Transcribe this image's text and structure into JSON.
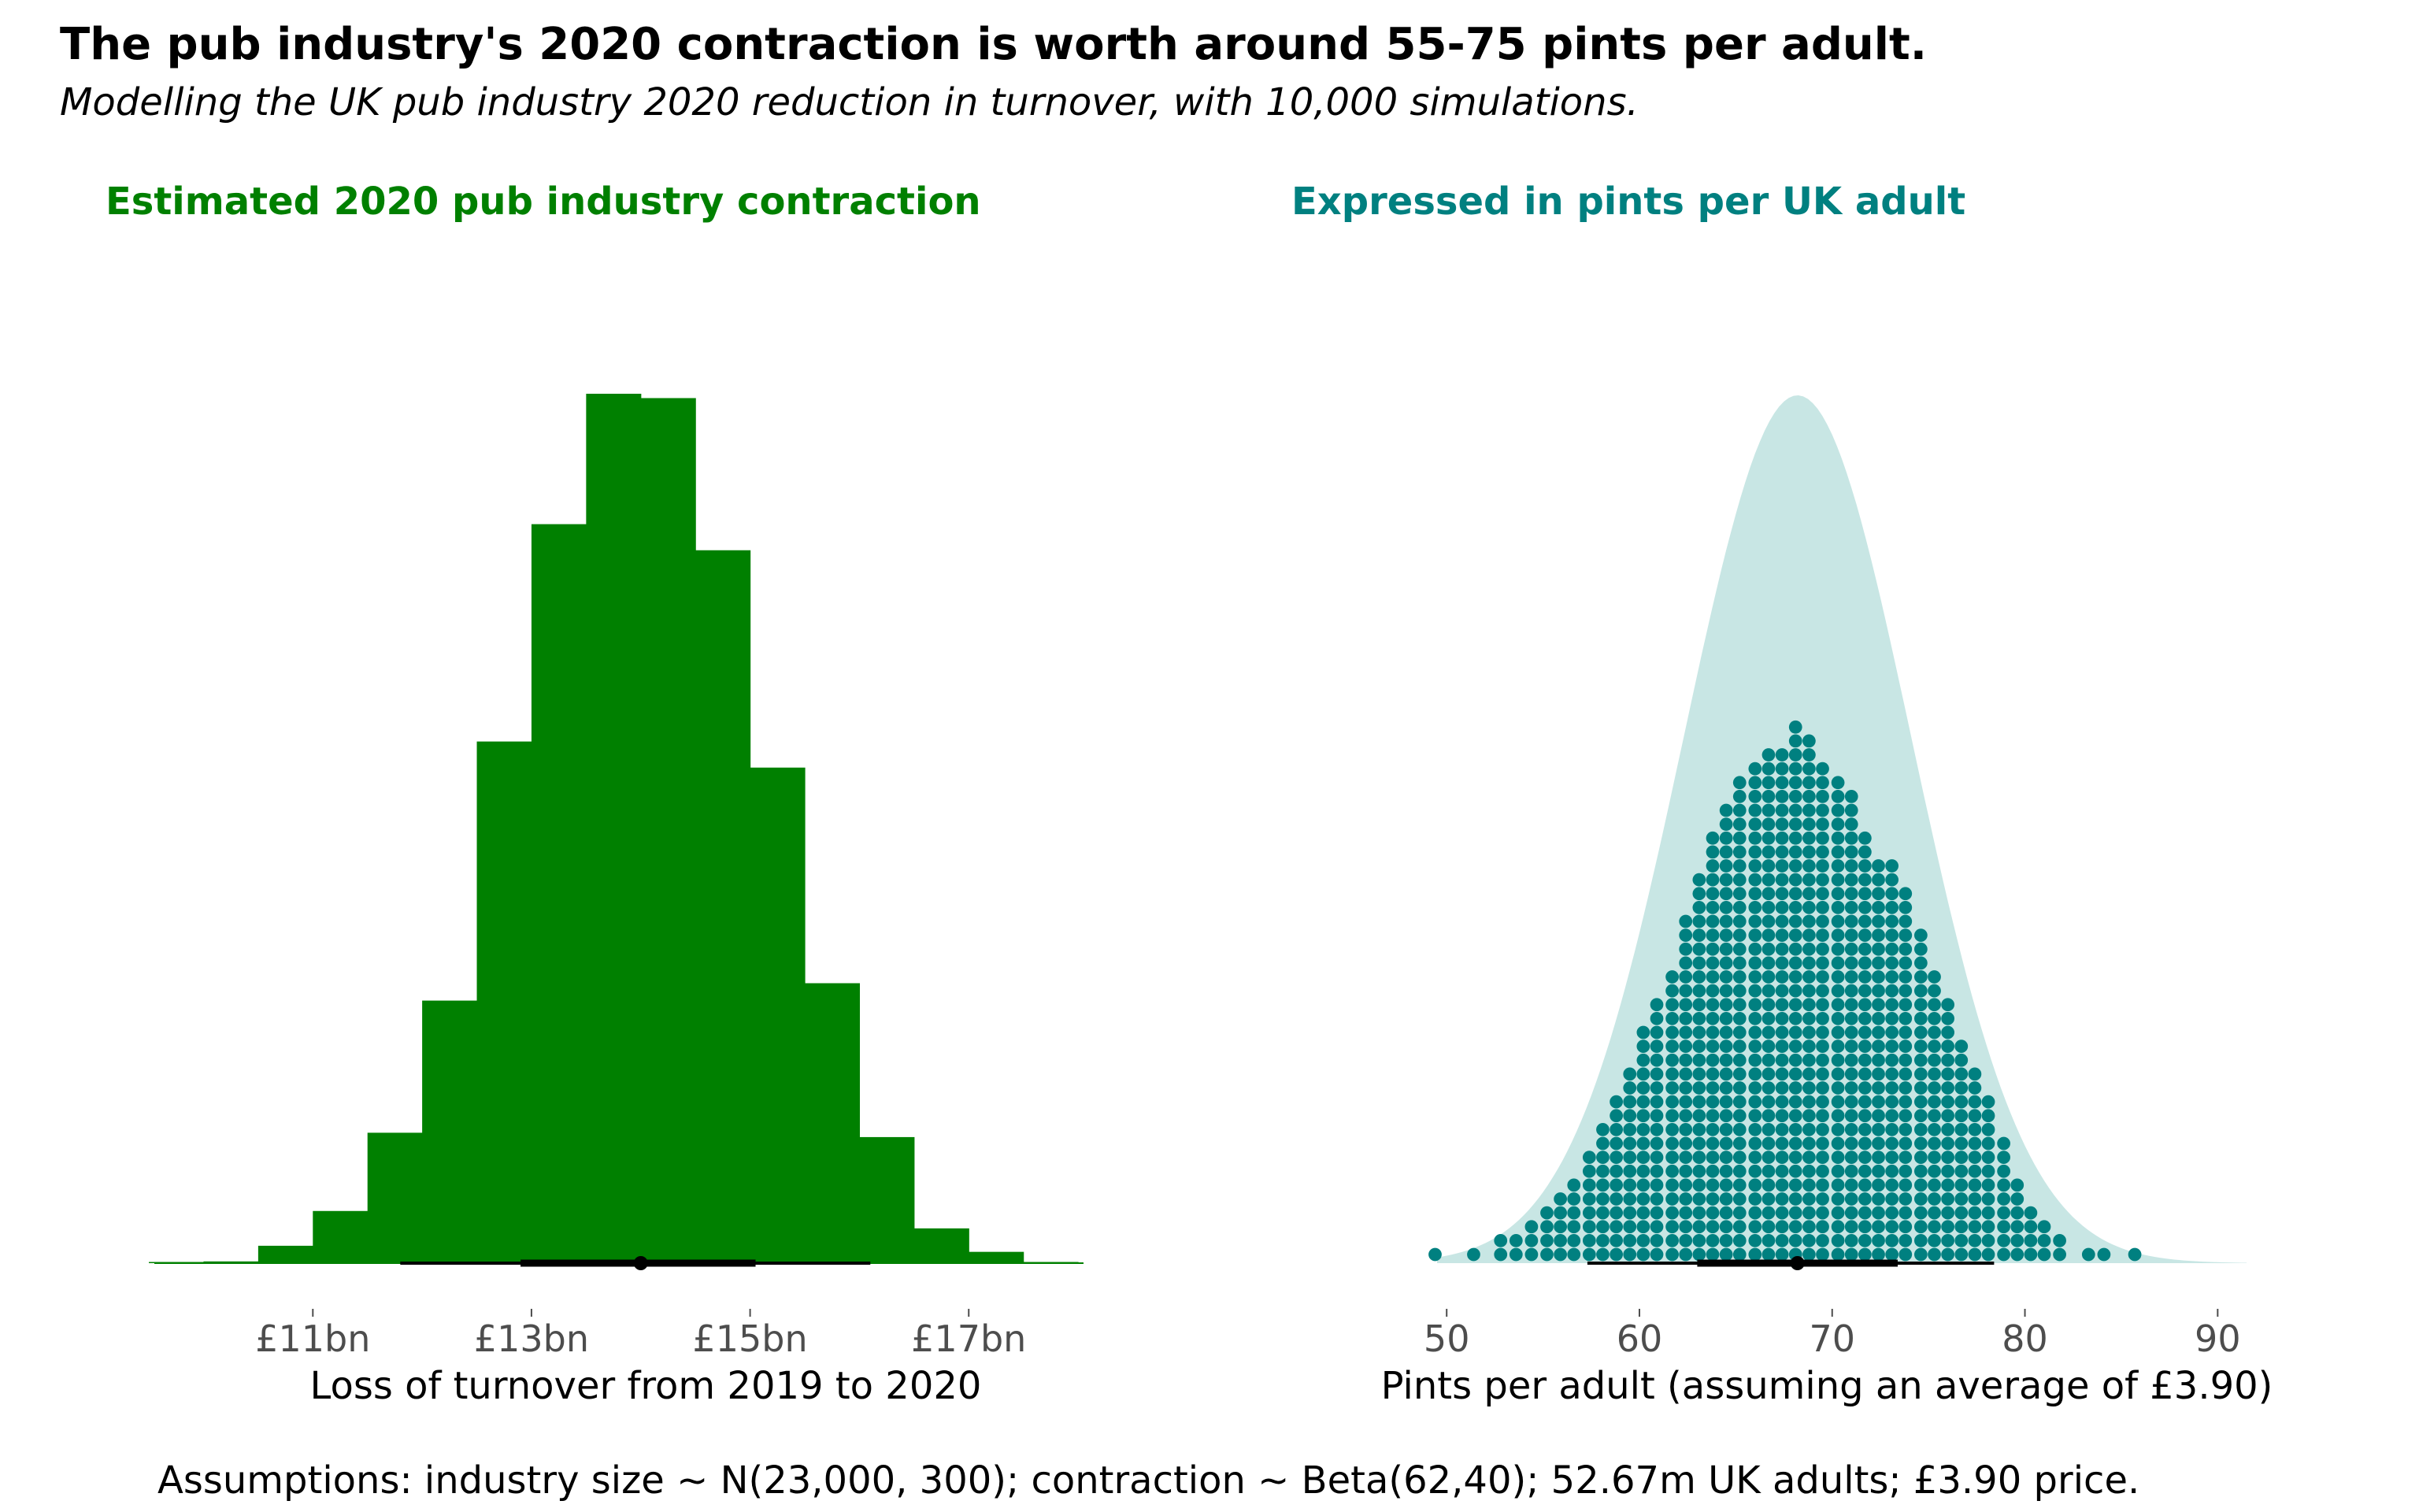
{
  "title": "The pub industry's 2020 contraction is worth around 55-75 pints per adult.",
  "subtitle": "Modelling the UK pub industry 2020 reduction in turnover, with 10,000 simulations.",
  "caption": "Assumptions: industry size ~ N(23,000, 300); contraction ~ Beta(62,40); 52.67m UK adults; £3.90 price.",
  "colors": {
    "left": "#008000",
    "right": "#008080",
    "right_fill": "#c8e6e4",
    "interval": "#000000"
  },
  "chart_data": [
    {
      "type": "bar",
      "title": "Estimated 2020 pub industry contraction",
      "xlabel": "Loss of turnover from 2019 to 2020",
      "ylabel": "",
      "xlim": [
        9.55,
        18.05
      ],
      "tick_values": [
        11,
        13,
        15,
        17
      ],
      "tick_labels": [
        "£11bn",
        "£13bn",
        "£15bn",
        "£17bn"
      ],
      "bin_edges": [
        9.5,
        10.0,
        10.5,
        11.0,
        11.5,
        12.0,
        12.5,
        13.0,
        13.5,
        14.0,
        14.5,
        15.0,
        15.5,
        16.0,
        16.5,
        17.0,
        17.5,
        18.0
      ],
      "values": [
        0.3,
        2,
        20,
        60,
        150,
        302,
        600,
        850,
        1000,
        995,
        820,
        570,
        322,
        145,
        40,
        13,
        1
      ],
      "point_interval": {
        "median": 14.0,
        "inner": [
          12.9,
          15.05
        ],
        "outer": [
          11.8,
          16.1
        ]
      },
      "grid": false,
      "legend": "none"
    },
    {
      "type": "scatter",
      "subtype": "dotplot",
      "title": "Expressed in pints per UK adult",
      "xlabel": "Pints per adult (assuming an average of £3.90)",
      "ylabel": "",
      "xlim": [
        47.5,
        93.5
      ],
      "tick_values": [
        50,
        60,
        70,
        80,
        90
      ],
      "tick_labels": [
        "50",
        "60",
        "70",
        "80",
        "90"
      ],
      "bin_width": 0.72,
      "dot_bins": [
        [
          49.4,
          1
        ],
        [
          51.4,
          1
        ],
        [
          52.8,
          2
        ],
        [
          53.6,
          2
        ],
        [
          54.4,
          3
        ],
        [
          55.2,
          4
        ],
        [
          55.9,
          5
        ],
        [
          56.6,
          6
        ],
        [
          57.4,
          8
        ],
        [
          58.1,
          10
        ],
        [
          58.8,
          12
        ],
        [
          59.5,
          14
        ],
        [
          60.2,
          17
        ],
        [
          60.9,
          19
        ],
        [
          61.7,
          21
        ],
        [
          62.4,
          25
        ],
        [
          63.1,
          28
        ],
        [
          63.8,
          31
        ],
        [
          64.5,
          33
        ],
        [
          65.2,
          35
        ],
        [
          66.0,
          36
        ],
        [
          66.7,
          37
        ],
        [
          67.4,
          37
        ],
        [
          68.1,
          39
        ],
        [
          68.8,
          38
        ],
        [
          69.5,
          36
        ],
        [
          70.3,
          35
        ],
        [
          71.0,
          34
        ],
        [
          71.7,
          31
        ],
        [
          72.4,
          29
        ],
        [
          73.1,
          29
        ],
        [
          73.8,
          27
        ],
        [
          74.6,
          24
        ],
        [
          75.3,
          21
        ],
        [
          76.0,
          19
        ],
        [
          76.7,
          16
        ],
        [
          77.4,
          14
        ],
        [
          78.1,
          12
        ],
        [
          78.9,
          9
        ],
        [
          79.6,
          6
        ],
        [
          80.3,
          4
        ],
        [
          81.0,
          3
        ],
        [
          81.8,
          2
        ],
        [
          83.3,
          1
        ],
        [
          84.1,
          1
        ],
        [
          85.7,
          1
        ]
      ],
      "density": {
        "mean": 68.2,
        "sd": 5.9
      },
      "point_interval": {
        "median": 68.2,
        "inner": [
          63.0,
          73.4
        ],
        "outer": [
          57.3,
          78.4
        ]
      },
      "grid": false,
      "legend": "none"
    }
  ]
}
